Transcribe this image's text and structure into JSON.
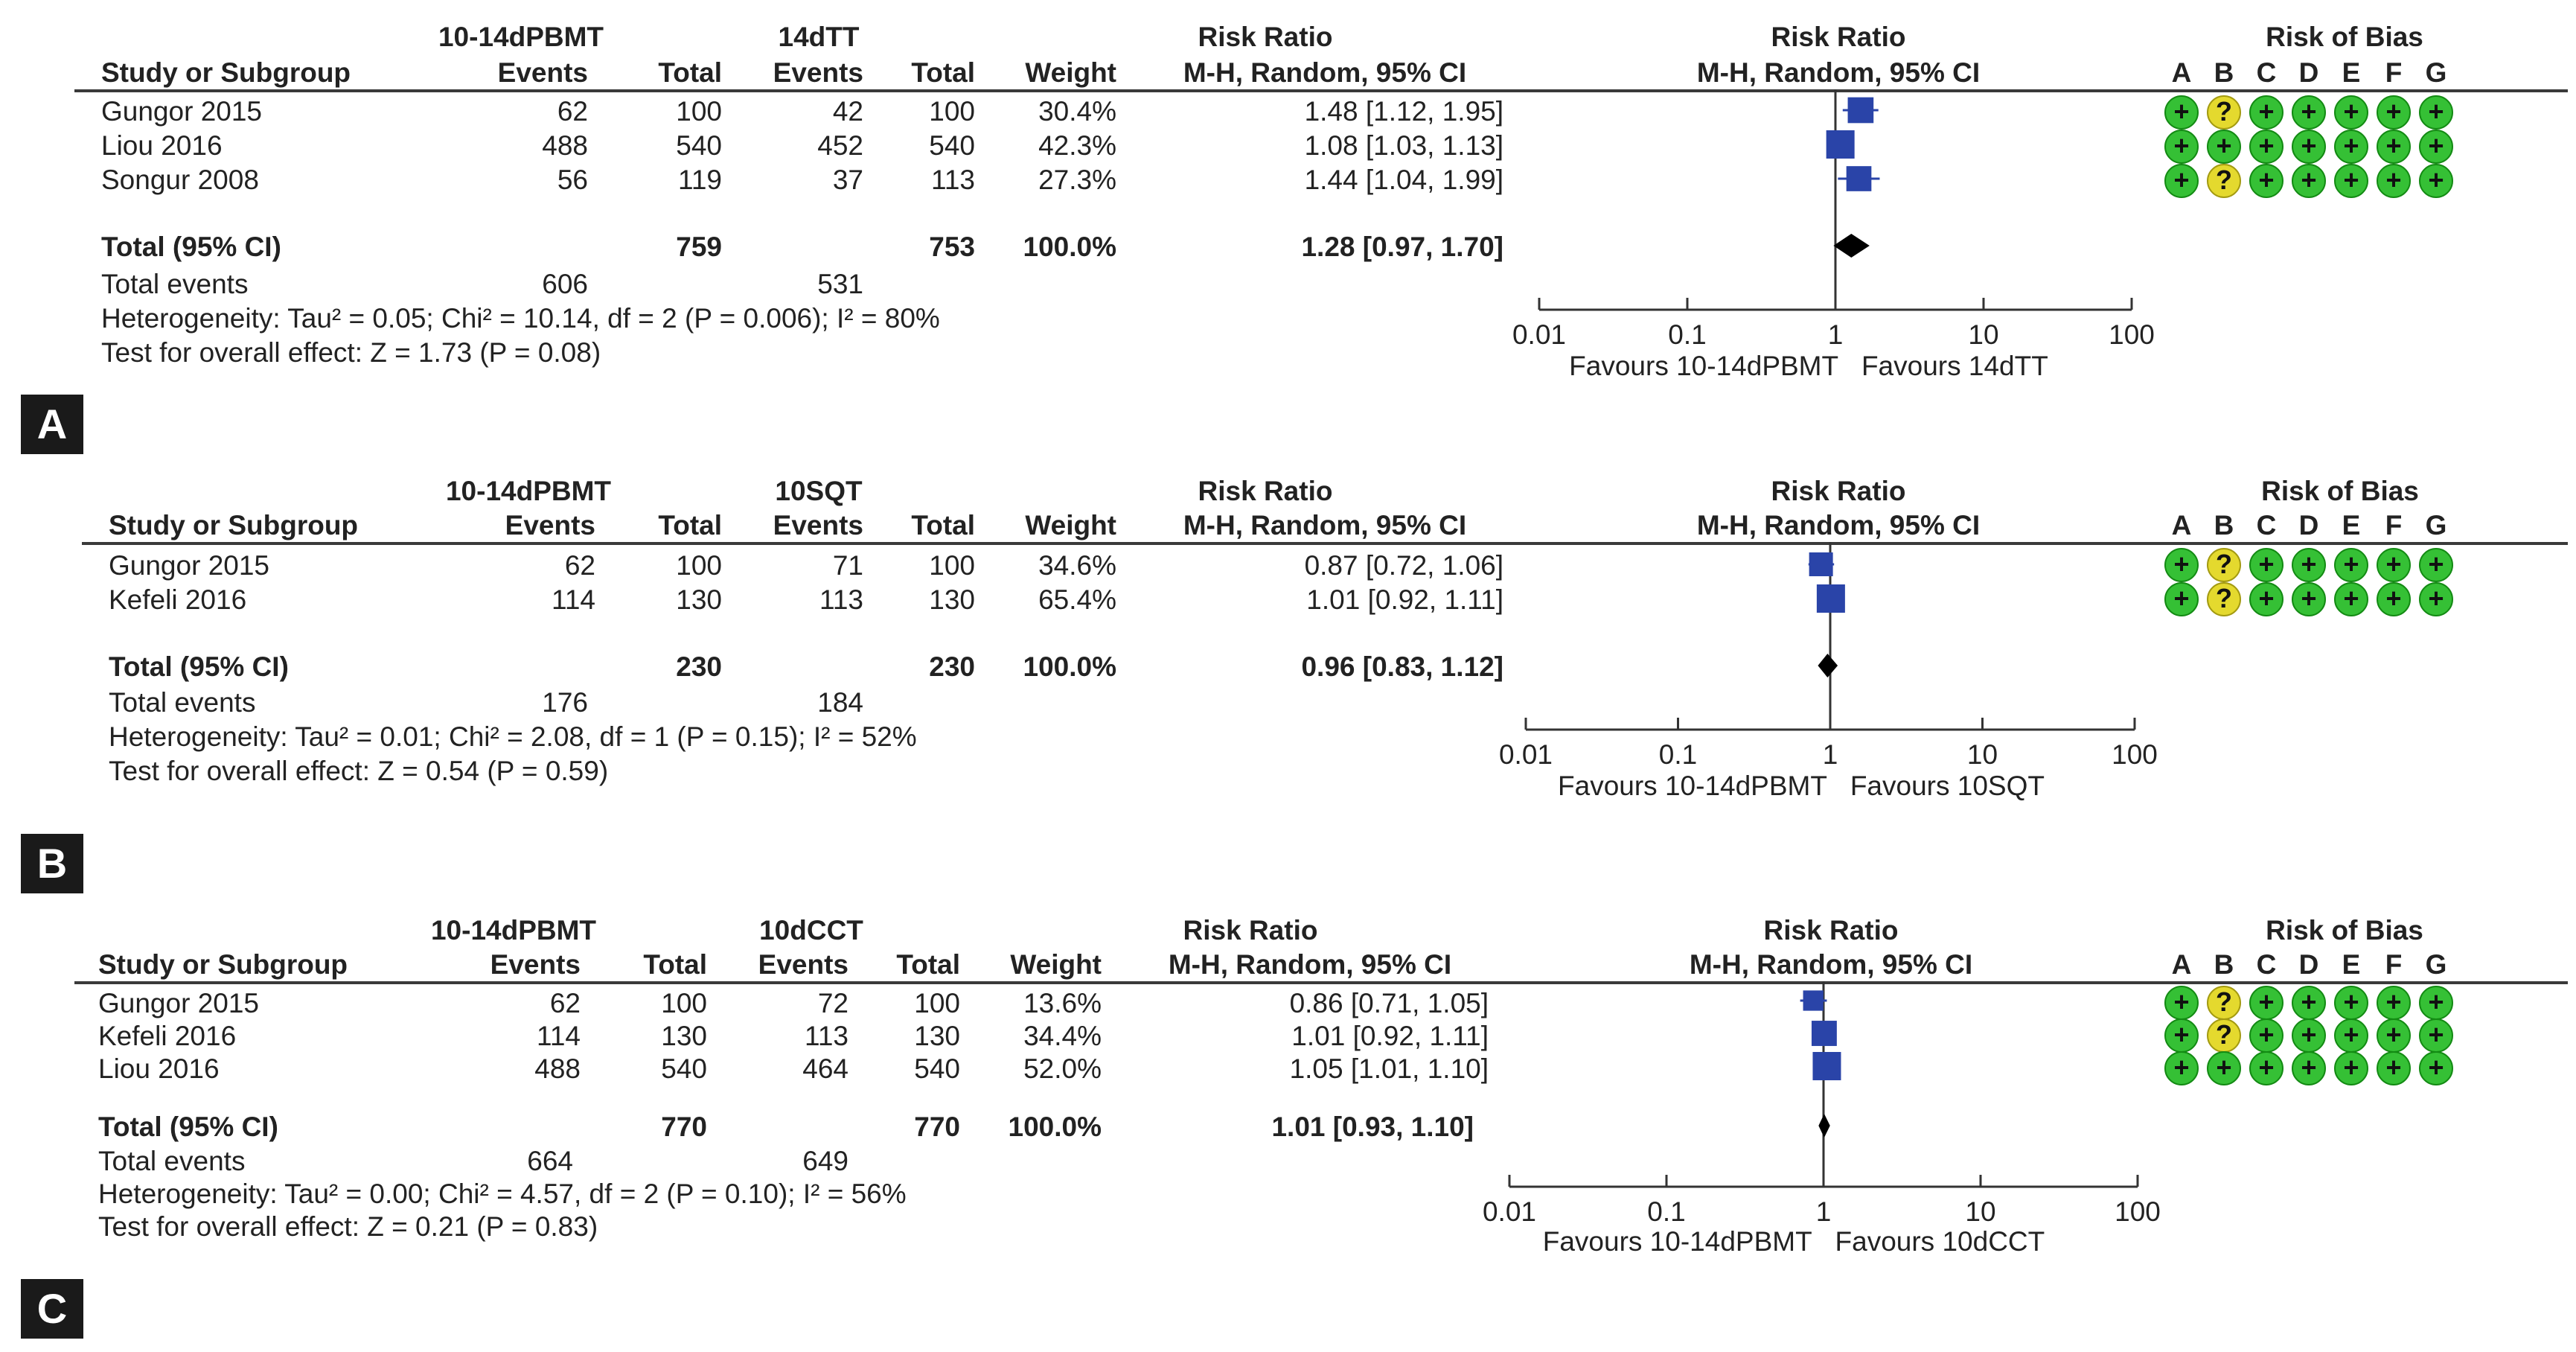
{
  "risk_of_bias_domains": [
    "A",
    "B",
    "C",
    "D",
    "E",
    "F",
    "G"
  ],
  "labels": {
    "study_col": "Study or Subgroup",
    "events": "Events",
    "total": "Total",
    "weight": "Weight",
    "rr": "Risk Ratio",
    "rr_method": "M-H, Random, 95% CI",
    "rob": "Risk of Bias",
    "total_ci": "Total (95% CI)",
    "total_events": "Total events"
  },
  "colors": {
    "study_box": "#2a44a8",
    "diamond": "#000000",
    "rob_low": "#35c035",
    "rob_unclear": "#e4d92e"
  },
  "chart_data": [
    {
      "type": "forest",
      "panel_label": "A",
      "group1": "10-14dPBMT",
      "group2": "14dTT",
      "x_scale": "log",
      "xlim": [
        0.01,
        100
      ],
      "ticks": [
        "0.01",
        "0.1",
        "1",
        "10",
        "100"
      ],
      "favours_left": "Favours 10-14dPBMT",
      "favours_right": "Favours 14dTT",
      "studies": [
        {
          "name": "Gungor 2015",
          "e1": "62",
          "t1": "100",
          "e2": "42",
          "t2": "100",
          "weight": "30.4%",
          "ci_text": "1.48 [1.12, 1.95]",
          "rr": 1.48,
          "lo": 1.12,
          "hi": 1.95,
          "w": 30.4,
          "rob": [
            "low",
            "unclear",
            "low",
            "low",
            "low",
            "low",
            "low"
          ]
        },
        {
          "name": "Liou 2016",
          "e1": "488",
          "t1": "540",
          "e2": "452",
          "t2": "540",
          "weight": "42.3%",
          "ci_text": "1.08 [1.03, 1.13]",
          "rr": 1.08,
          "lo": 1.03,
          "hi": 1.13,
          "w": 42.3,
          "rob": [
            "low",
            "low",
            "low",
            "low",
            "low",
            "low",
            "low"
          ]
        },
        {
          "name": "Songur 2008",
          "e1": "56",
          "t1": "119",
          "e2": "37",
          "t2": "113",
          "weight": "27.3%",
          "ci_text": "1.44 [1.04, 1.99]",
          "rr": 1.44,
          "lo": 1.04,
          "hi": 1.99,
          "w": 27.3,
          "rob": [
            "low",
            "unclear",
            "low",
            "low",
            "low",
            "low",
            "low"
          ]
        }
      ],
      "total": {
        "t1": "759",
        "t2": "753",
        "weight": "100.0%",
        "ci_text": "1.28 [0.97, 1.70]",
        "rr": 1.28,
        "lo": 0.97,
        "hi": 1.7
      },
      "total_events": {
        "e1": "606",
        "e2": "531"
      },
      "heterogeneity": "Heterogeneity: Tau² = 0.05; Chi² = 10.14, df = 2 (P = 0.006); I² = 80%",
      "overall": "Test for overall effect: Z = 1.73 (P = 0.08)"
    },
    {
      "type": "forest",
      "panel_label": "B",
      "group1": "10-14dPBMT",
      "group2": "10SQT",
      "x_scale": "log",
      "xlim": [
        0.01,
        100
      ],
      "ticks": [
        "0.01",
        "0.1",
        "1",
        "10",
        "100"
      ],
      "favours_left": "Favours 10-14dPBMT",
      "favours_right": "Favours 10SQT",
      "studies": [
        {
          "name": "Gungor 2015",
          "e1": "62",
          "t1": "100",
          "e2": "71",
          "t2": "100",
          "weight": "34.6%",
          "ci_text": "0.87 [0.72, 1.06]",
          "rr": 0.87,
          "lo": 0.72,
          "hi": 1.06,
          "w": 34.6,
          "rob": [
            "low",
            "unclear",
            "low",
            "low",
            "low",
            "low",
            "low"
          ]
        },
        {
          "name": "Kefeli 2016",
          "e1": "114",
          "t1": "130",
          "e2": "113",
          "t2": "130",
          "weight": "65.4%",
          "ci_text": "1.01 [0.92, 1.11]",
          "rr": 1.01,
          "lo": 0.92,
          "hi": 1.11,
          "w": 65.4,
          "rob": [
            "low",
            "unclear",
            "low",
            "low",
            "low",
            "low",
            "low"
          ]
        }
      ],
      "total": {
        "t1": "230",
        "t2": "230",
        "weight": "100.0%",
        "ci_text": "0.96 [0.83, 1.12]",
        "rr": 0.96,
        "lo": 0.83,
        "hi": 1.12
      },
      "total_events": {
        "e1": "176",
        "e2": "184"
      },
      "heterogeneity": "Heterogeneity: Tau² = 0.01; Chi² = 2.08, df = 1 (P = 0.15); I² = 52%",
      "overall": "Test for overall effect: Z = 0.54 (P = 0.59)"
    },
    {
      "type": "forest",
      "panel_label": "C",
      "group1": "10-14dPBMT",
      "group2": "10dCCT",
      "x_scale": "log",
      "xlim": [
        0.01,
        100
      ],
      "ticks": [
        "0.01",
        "0.1",
        "1",
        "10",
        "100"
      ],
      "favours_left": "Favours 10-14dPBMT",
      "favours_right": "Favours 10dCCT",
      "studies": [
        {
          "name": "Gungor 2015",
          "e1": "62",
          "t1": "100",
          "e2": "72",
          "t2": "100",
          "weight": "13.6%",
          "ci_text": "0.86 [0.71, 1.05]",
          "rr": 0.86,
          "lo": 0.71,
          "hi": 1.05,
          "w": 13.6,
          "rob": [
            "low",
            "unclear",
            "low",
            "low",
            "low",
            "low",
            "low"
          ]
        },
        {
          "name": "Kefeli 2016",
          "e1": "114",
          "t1": "130",
          "e2": "113",
          "t2": "130",
          "weight": "34.4%",
          "ci_text": "1.01 [0.92, 1.11]",
          "rr": 1.01,
          "lo": 0.92,
          "hi": 1.11,
          "w": 34.4,
          "rob": [
            "low",
            "unclear",
            "low",
            "low",
            "low",
            "low",
            "low"
          ]
        },
        {
          "name": "Liou 2016",
          "e1": "488",
          "t1": "540",
          "e2": "464",
          "t2": "540",
          "weight": "52.0%",
          "ci_text": "1.05 [1.01, 1.10]",
          "rr": 1.05,
          "lo": 1.01,
          "hi": 1.1,
          "w": 52.0,
          "rob": [
            "low",
            "low",
            "low",
            "low",
            "low",
            "low",
            "low"
          ]
        }
      ],
      "total": {
        "t1": "770",
        "t2": "770",
        "weight": "100.0%",
        "ci_text": "1.01 [0.93, 1.10]",
        "rr": 1.01,
        "lo": 0.93,
        "hi": 1.1
      },
      "total_events": {
        "e1": "664",
        "e2": "649"
      },
      "heterogeneity": "Heterogeneity: Tau² = 0.00; Chi² = 4.57, df = 2 (P = 0.10); I² = 56%",
      "overall": "Test for overall effect: Z = 0.21 (P = 0.83)"
    }
  ]
}
